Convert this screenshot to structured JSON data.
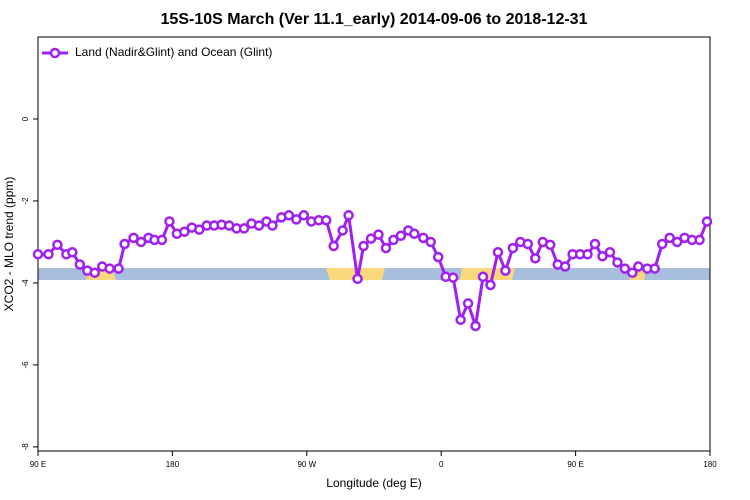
{
  "chart_data": {
    "type": "line",
    "title": "15S-10S March (Ver 11.1_early)   2014-09-06 to 2018-12-31",
    "xlabel": "Longitude (deg E)",
    "ylabel": "XCO2 - MLO trend (ppm)",
    "x": [
      90,
      97,
      103,
      109,
      113,
      118,
      123,
      128,
      133,
      138,
      144,
      148,
      154,
      159,
      164,
      168,
      173,
      178,
      183,
      188,
      193,
      198,
      203,
      208,
      213,
      218,
      223,
      228,
      233,
      238,
      243,
      247,
      253,
      258,
      263,
      268,
      273,
      278,
      283,
      288,
      294,
      298,
      304,
      308,
      313,
      318,
      323,
      328,
      333,
      338,
      342,
      348,
      353,
      358,
      363,
      368,
      373,
      378,
      383,
      388,
      393,
      398,
      403,
      408,
      413,
      418,
      423,
      428,
      433,
      438,
      443,
      448,
      453,
      458,
      463,
      468,
      473,
      478,
      483,
      488,
      492,
      498,
      503,
      508,
      513,
      518,
      523,
      528,
      533,
      538
    ],
    "series": [
      {
        "name": "Land (Nadir&Glint) and Ocean (Glint)",
        "color": "#a020f0",
        "values": [
          -3.3,
          -3.3,
          -3.07,
          -3.3,
          -3.25,
          -3.55,
          -3.7,
          -3.75,
          -3.6,
          -3.65,
          -3.65,
          -3.05,
          -2.9,
          -3.0,
          -2.9,
          -2.95,
          -2.95,
          -2.5,
          -2.8,
          -2.75,
          -2.65,
          -2.7,
          -2.6,
          -2.6,
          -2.58,
          -2.6,
          -2.67,
          -2.67,
          -2.55,
          -2.6,
          -2.5,
          -2.6,
          -2.4,
          -2.35,
          -2.45,
          -2.35,
          -2.5,
          -2.47,
          -2.47,
          -3.1,
          -2.72,
          -2.35,
          -3.9,
          -3.1,
          -2.92,
          -2.82,
          -3.15,
          -2.95,
          -2.85,
          -2.72,
          -2.8,
          -2.9,
          -3.0,
          -3.37,
          -3.85,
          -3.87,
          -4.9,
          -4.5,
          -5.05,
          -3.85,
          -4.05,
          -3.25,
          -3.7,
          -3.15,
          -3.0,
          -3.05,
          -3.4,
          -3.0,
          -3.07,
          -3.55,
          -3.6,
          -3.3,
          -3.3,
          -3.3,
          -3.05,
          -3.35,
          -3.25,
          -3.5,
          -3.65,
          -3.75,
          -3.6,
          -3.65,
          -3.65,
          -3.05,
          -2.9,
          -3.0,
          -2.9,
          -2.95,
          -2.95,
          -2.5
        ]
      }
    ],
    "xlim": [
      90,
      540
    ],
    "xticks": [
      {
        "value": 90,
        "label": "90 E"
      },
      180,
      {
        "value": 270,
        "label": "90 W"
      },
      {
        "value": 360,
        "label": "0"
      },
      {
        "value": 450,
        "label": "90 E"
      },
      {
        "value": 540,
        "label": "180"
      }
    ],
    "ylim": [
      -8.1,
      2
    ],
    "yticks": [
      0,
      -2,
      -4,
      -6,
      -8
    ],
    "legend": "upper left"
  }
}
